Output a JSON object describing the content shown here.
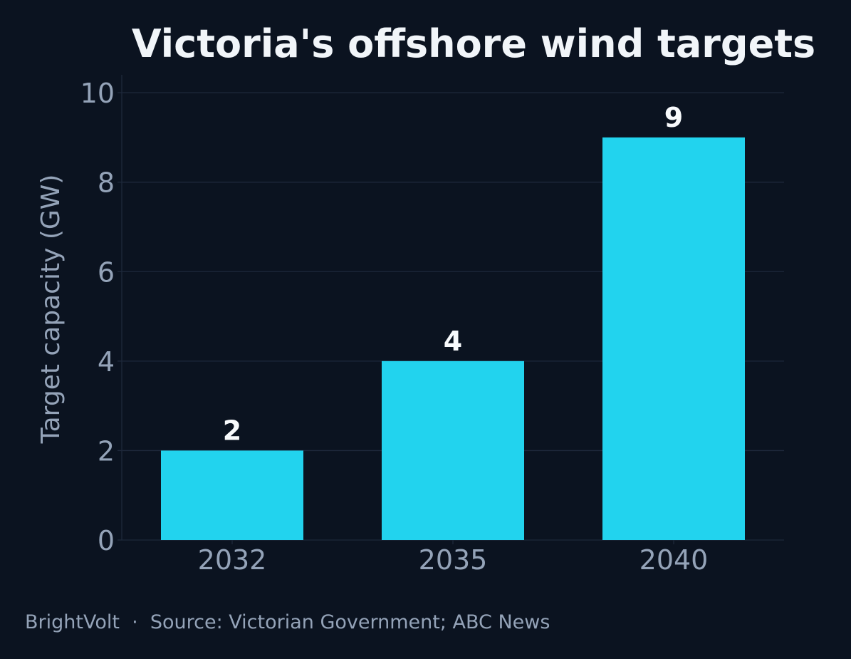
{
  "colors": {
    "background": "#0b1320",
    "bar": "#22d3ee",
    "grid": "#1e293b",
    "axis": "#1e293b",
    "title": "#f1f5f9",
    "tick_text": "#94a3b8",
    "value_text": "#f8fafc"
  },
  "chart_data": {
    "type": "bar",
    "title": "Victoria's offshore wind targets",
    "xlabel": "",
    "ylabel": "Target capacity (GW)",
    "categories": [
      "2032",
      "2035",
      "2040"
    ],
    "values": [
      2,
      4,
      9
    ],
    "value_labels": [
      "2",
      "4",
      "9"
    ],
    "yticks": [
      0,
      2,
      4,
      6,
      8,
      10
    ],
    "ylim": [
      0,
      10.4
    ],
    "grid": true,
    "legend": "none"
  },
  "footer": {
    "brand": "BrightVolt",
    "separator": "·",
    "source": "Source: Victorian Government; ABC News"
  }
}
